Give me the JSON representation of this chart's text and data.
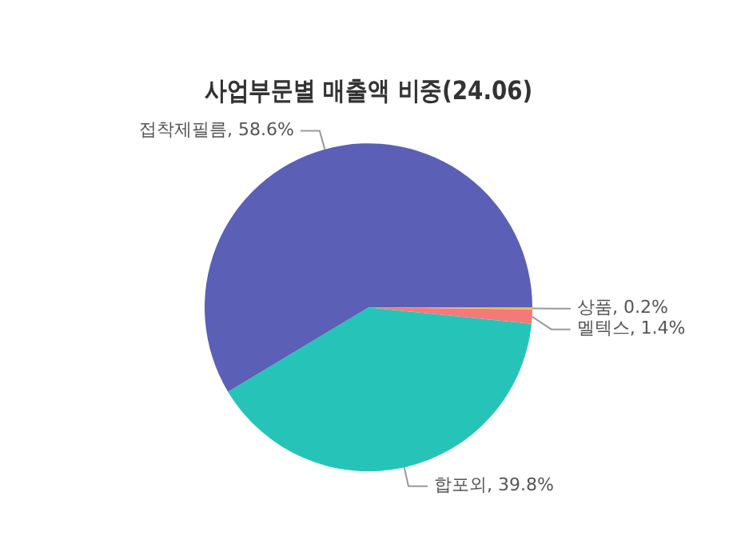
{
  "chart_data": {
    "type": "pie",
    "title": "사업부문별 매출액 비중(24.06)",
    "categories": [
      "상품",
      "멜텍스",
      "합포외",
      "접착제필름"
    ],
    "values": [
      0.2,
      1.4,
      39.8,
      58.6
    ],
    "value_labels": [
      "0.2%",
      "1.4%",
      "39.8%",
      "58.6%"
    ],
    "colors": [
      "#f5c242",
      "#f47a7a",
      "#26c4b8",
      "#5b5fb5"
    ],
    "legend": false
  }
}
